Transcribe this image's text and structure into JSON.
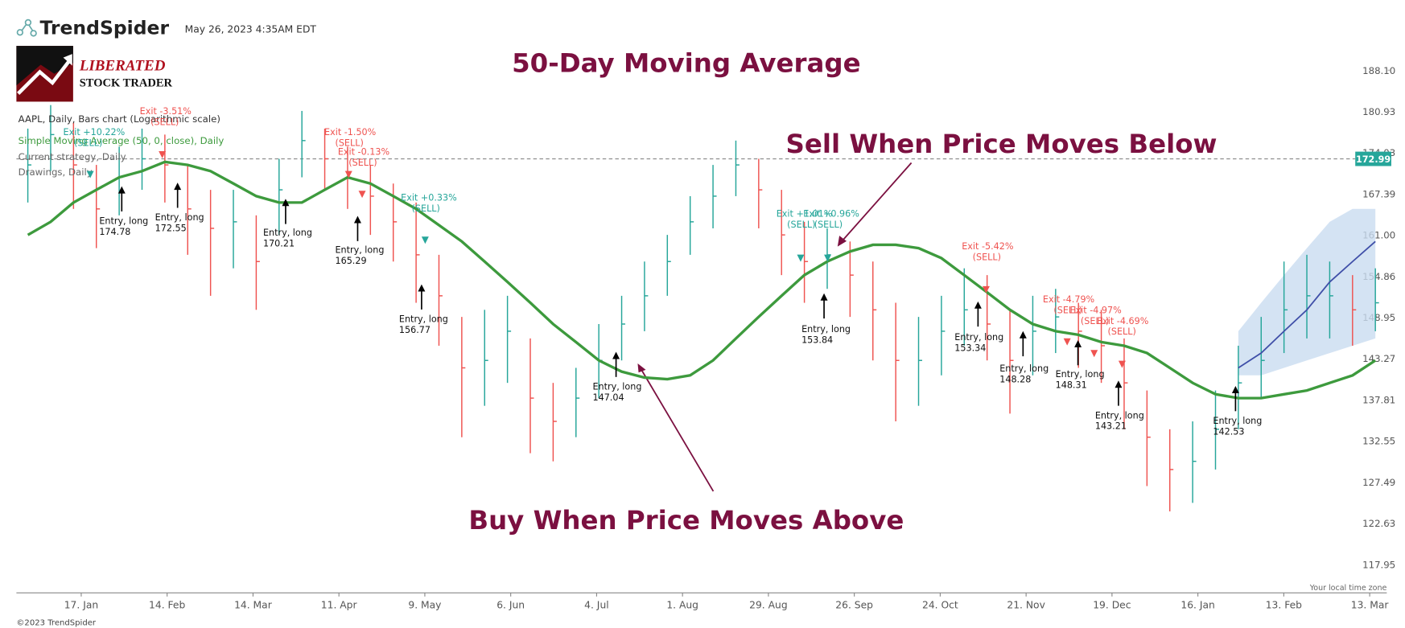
{
  "header": {
    "brand": "TrendSpider",
    "timestamp": "May 26, 2023 4:35AM EDT",
    "logo_line1": "LIBERATED",
    "logo_line2": "STOCK TRADER"
  },
  "chart_data": {
    "type": "ohlc",
    "title": "50-Day Moving Average",
    "annotations": [
      "Sell When Price Moves Below",
      "Buy When Price Moves Above"
    ],
    "log_scale": true,
    "grid": false,
    "ylim": [
      115.2,
      191
    ],
    "yticks": [
      {
        "value": 188.1,
        "label": "188.10"
      },
      180.93,
      174.03,
      167.39,
      {
        "value": 161,
        "label": "161.00"
      },
      154.86,
      148.95,
      143.27,
      137.81,
      132.55,
      127.49,
      122.63,
      117.95
    ],
    "xtick_labels": [
      "17. Jan",
      "14. Feb",
      "14. Mar",
      "11. Apr",
      "9. May",
      "6. Jun",
      "4. Jul",
      "1. Aug",
      "29. Aug",
      "26. Sep",
      "24. Oct",
      "21. Nov",
      "19. Dec",
      "16. Jan",
      "13. Feb",
      "13. Mar"
    ],
    "price": {
      "name": "AAPL, Daily, Bars chart (Logarithmic scale)",
      "up_color": "#26a69a",
      "down_color": "#ef5350",
      "high": [
        178,
        182,
        179,
        172,
        175,
        178,
        177,
        172,
        168,
        168,
        164,
        173,
        181,
        178,
        175,
        172,
        169,
        166,
        158,
        149,
        150,
        152,
        146,
        140,
        142,
        148,
        152,
        157,
        161,
        167,
        172,
        176,
        173,
        168,
        163,
        162,
        160,
        157,
        151,
        149,
        152,
        156,
        155,
        150,
        152,
        153,
        151,
        150,
        146,
        139,
        134,
        135,
        139,
        145,
        149,
        157,
        158,
        157,
        155,
        156
      ],
      "low": [
        166,
        171,
        165,
        159,
        164,
        168,
        166,
        158,
        152,
        156,
        150,
        161,
        170,
        168,
        165,
        161,
        157,
        151,
        145,
        133,
        137,
        140,
        131,
        130,
        133,
        138,
        143,
        147,
        152,
        158,
        162,
        167,
        162,
        155,
        151,
        153,
        149,
        143,
        135,
        137,
        141,
        145,
        143,
        136,
        141,
        144,
        142,
        140,
        134,
        127,
        124,
        125,
        129,
        134,
        138,
        144,
        146,
        146,
        145,
        147
      ],
      "close": [
        172,
        177,
        172,
        165,
        170,
        173,
        172,
        165,
        162,
        163,
        157,
        168,
        176,
        173,
        170,
        167,
        163,
        158,
        152,
        142,
        143,
        147,
        138,
        135,
        138,
        143,
        148,
        152,
        157,
        163,
        167,
        172,
        168,
        161,
        157,
        158,
        155,
        150,
        143,
        143,
        147,
        150,
        148,
        143,
        147,
        149,
        147,
        145,
        140,
        133,
        129,
        130,
        134,
        140,
        143,
        150,
        152,
        152,
        150,
        151
      ]
    },
    "series": [
      {
        "name": "Simple Moving Average (50, 0, close), Daily",
        "color": "#3d9a3d",
        "values": [
          161,
          163,
          166,
          168,
          170,
          171,
          172.5,
          172,
          171,
          169,
          167,
          166,
          166,
          168,
          170,
          169,
          167,
          165,
          162.5,
          160,
          157,
          154,
          151,
          148,
          145.5,
          143,
          141.5,
          140.7,
          140.5,
          141,
          143,
          146,
          149,
          152,
          155,
          157,
          158.5,
          159.5,
          159.5,
          159,
          157.5,
          155,
          152.5,
          150,
          148,
          147,
          146.5,
          145.5,
          145,
          144,
          142,
          140,
          138.5,
          138,
          138,
          138.5,
          139,
          140,
          141,
          143
        ]
      }
    ],
    "forecast": {
      "color": "#3f4fa8",
      "band_color": "#c9dcf0",
      "values": [
        null,
        null,
        null,
        null,
        null,
        null,
        null,
        null,
        null,
        null,
        null,
        null,
        null,
        null,
        null,
        null,
        null,
        null,
        null,
        null,
        null,
        null,
        null,
        null,
        null,
        null,
        null,
        null,
        null,
        null,
        null,
        null,
        null,
        null,
        null,
        null,
        null,
        null,
        null,
        null,
        null,
        null,
        null,
        null,
        null,
        null,
        null,
        null,
        null,
        null,
        null,
        null,
        null,
        142,
        144,
        147,
        150,
        154,
        157,
        160
      ],
      "upper": [
        null,
        null,
        null,
        null,
        null,
        null,
        null,
        null,
        null,
        null,
        null,
        null,
        null,
        null,
        null,
        null,
        null,
        null,
        null,
        null,
        null,
        null,
        null,
        null,
        null,
        null,
        null,
        null,
        null,
        null,
        null,
        null,
        null,
        null,
        null,
        null,
        null,
        null,
        null,
        null,
        null,
        null,
        null,
        null,
        null,
        null,
        null,
        null,
        null,
        null,
        null,
        null,
        null,
        147,
        151,
        155,
        159,
        163,
        165,
        165
      ],
      "lower": [
        null,
        null,
        null,
        null,
        null,
        null,
        null,
        null,
        null,
        null,
        null,
        null,
        null,
        null,
        null,
        null,
        null,
        null,
        null,
        null,
        null,
        null,
        null,
        null,
        null,
        null,
        null,
        null,
        null,
        null,
        null,
        null,
        null,
        null,
        null,
        null,
        null,
        null,
        null,
        null,
        null,
        null,
        null,
        null,
        null,
        null,
        null,
        null,
        null,
        null,
        null,
        null,
        null,
        141,
        141,
        142,
        143,
        144,
        145,
        146
      ]
    },
    "current_price": {
      "value": 172.99,
      "color": "#26a69a"
    },
    "legend_extra": [
      "Current strategy, Daily",
      "Drawings, Daily"
    ],
    "entries": [
      {
        "label": "Entry, long",
        "price": 174.78
      },
      {
        "label": "Entry, long",
        "price": 172.55
      },
      {
        "label": "Entry, long",
        "price": 170.21
      },
      {
        "label": "Entry, long",
        "price": 165.29
      },
      {
        "label": "Entry, long",
        "price": 156.77
      },
      {
        "label": "Entry, long",
        "price": 147.04
      },
      {
        "label": "Entry, long",
        "price": 153.84
      },
      {
        "label": "Entry, long",
        "price": 153.34
      },
      {
        "label": "Entry, long",
        "price": 148.28
      },
      {
        "label": "Entry, long",
        "price": 148.31
      },
      {
        "label": "Entry, long",
        "price": 143.21
      },
      {
        "label": "Entry, long",
        "price": 142.53
      }
    ],
    "exits": [
      {
        "label": "Exit +10.22%",
        "note": "(SELL)",
        "color": "#26a69a"
      },
      {
        "label": "Exit -3.51%",
        "note": "(SELL)",
        "color": "#ef5350"
      },
      {
        "label": "Exit -1.50%",
        "note": "(SELL)",
        "color": "#ef5350"
      },
      {
        "label": "Exit -0.13%",
        "note": "(SELL)",
        "color": "#ef5350"
      },
      {
        "label": "Exit +0.33%",
        "note": "(SELL)",
        "color": "#26a69a"
      },
      {
        "label": "Exit +1.01%",
        "note": "(SELL)",
        "color": "#26a69a"
      },
      {
        "label": "Exit +0.96%",
        "note": "(SELL)",
        "color": "#26a69a"
      },
      {
        "label": "Exit -5.42%",
        "note": "(SELL)",
        "color": "#ef5350"
      },
      {
        "label": "Exit -4.79%",
        "note": "(SELL)",
        "color": "#ef5350"
      },
      {
        "label": "Exit -4.97%",
        "note": "(SELL)",
        "color": "#ef5350"
      },
      {
        "label": "Exit -4.69%",
        "note": "(SELL)",
        "color": "#ef5350"
      }
    ]
  },
  "footer": {
    "copyright": "©2023 TrendSpider",
    "timezone": "Your local time zone"
  }
}
